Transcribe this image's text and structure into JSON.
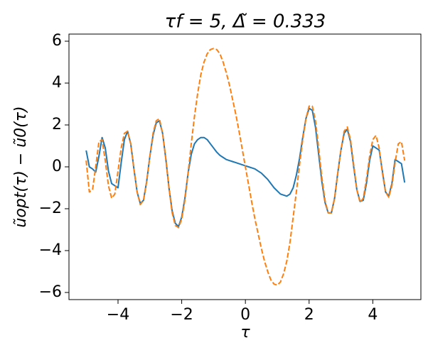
{
  "chart_data": {
    "type": "line",
    "title": "τf = 5,  Δ̃ = 0.333",
    "x_label": "τ",
    "y_label": "ũopt(τ) − ũ0(τ)",
    "x": [
      -5.0,
      -4.9,
      -4.8,
      -4.7,
      -4.6,
      -4.5,
      -4.4,
      -4.3,
      -4.2,
      -4.1,
      -4.0,
      -3.9,
      -3.8,
      -3.7,
      -3.6,
      -3.5,
      -3.4,
      -3.3,
      -3.2,
      -3.1,
      -3.0,
      -2.9,
      -2.8,
      -2.7,
      -2.6,
      -2.5,
      -2.4,
      -2.3,
      -2.2,
      -2.1,
      -2.0,
      -1.9,
      -1.8,
      -1.7,
      -1.6,
      -1.5,
      -1.4,
      -1.3,
      -1.2,
      -1.1,
      -1.0,
      -0.9,
      -0.8,
      -0.7,
      -0.6,
      -0.5,
      -0.4,
      -0.3,
      -0.2,
      -0.1,
      0.0,
      0.1,
      0.2,
      0.3,
      0.4,
      0.5,
      0.6,
      0.7,
      0.8,
      0.9,
      1.0,
      1.1,
      1.2,
      1.3,
      1.4,
      1.5,
      1.6,
      1.7,
      1.8,
      1.9,
      2.0,
      2.1,
      2.2,
      2.3,
      2.4,
      2.5,
      2.6,
      2.7,
      2.8,
      2.9,
      3.0,
      3.1,
      3.2,
      3.3,
      3.4,
      3.5,
      3.6,
      3.7,
      3.8,
      3.9,
      4.0,
      4.1,
      4.2,
      4.3,
      4.4,
      4.5,
      4.6,
      4.7,
      4.8,
      4.9,
      5.0
    ],
    "series": [
      {
        "color": "#1f77b4",
        "dash": false,
        "values": [
          0.78,
          0.0,
          -0.1,
          -0.25,
          0.5,
          1.4,
          0.9,
          -0.2,
          -0.8,
          -0.9,
          -1.0,
          0.2,
          1.3,
          1.7,
          1.1,
          -0.1,
          -1.2,
          -1.75,
          -1.6,
          -0.7,
          0.5,
          1.5,
          2.1,
          2.2,
          1.6,
          0.4,
          -1.0,
          -2.1,
          -2.7,
          -2.85,
          -2.4,
          -1.5,
          -0.3,
          0.6,
          1.1,
          1.3,
          1.4,
          1.4,
          1.3,
          1.1,
          0.9,
          0.7,
          0.55,
          0.45,
          0.35,
          0.3,
          0.25,
          0.2,
          0.15,
          0.1,
          0.05,
          0.0,
          -0.05,
          -0.1,
          -0.2,
          -0.3,
          -0.45,
          -0.6,
          -0.8,
          -1.0,
          -1.15,
          -1.3,
          -1.35,
          -1.4,
          -1.3,
          -1.0,
          -0.4,
          0.4,
          1.4,
          2.3,
          2.8,
          2.7,
          1.9,
          0.6,
          -0.7,
          -1.7,
          -2.2,
          -2.2,
          -1.5,
          -0.3,
          0.8,
          1.6,
          1.8,
          1.2,
          0.0,
          -1.1,
          -1.65,
          -1.6,
          -0.8,
          0.3,
          1.0,
          0.9,
          0.8,
          -0.2,
          -1.2,
          -1.4,
          -0.8,
          0.35,
          0.25,
          0.15,
          -0.75
        ]
      },
      {
        "color": "#ff7f0e",
        "dash": true,
        "values": [
          0.3,
          -1.2,
          -1.1,
          0.0,
          1.2,
          1.3,
          0.3,
          -0.9,
          -1.5,
          -1.3,
          -0.2,
          0.9,
          1.6,
          1.7,
          1.1,
          -0.1,
          -1.2,
          -1.8,
          -1.6,
          -0.7,
          0.5,
          1.6,
          2.2,
          2.3,
          1.6,
          0.4,
          -1.0,
          -2.2,
          -2.8,
          -2.9,
          -2.5,
          -1.6,
          -0.3,
          1.1,
          2.4,
          3.5,
          4.4,
          5.0,
          5.4,
          5.6,
          5.65,
          5.6,
          5.4,
          5.0,
          4.5,
          3.9,
          3.2,
          2.5,
          1.7,
          0.85,
          0,
          -0.85,
          -1.7,
          -2.5,
          -3.2,
          -3.9,
          -4.5,
          -5.0,
          -5.4,
          -5.6,
          -5.65,
          -5.5,
          -5.1,
          -4.5,
          -3.6,
          -2.4,
          -1.2,
          0.1,
          1.3,
          2.3,
          2.9,
          2.9,
          2.2,
          0.9,
          -0.5,
          -1.6,
          -2.2,
          -2.2,
          -1.5,
          -0.3,
          0.8,
          1.7,
          1.9,
          1.3,
          0.1,
          -1.1,
          -1.7,
          -1.5,
          -0.6,
          0.5,
          1.3,
          1.5,
          0.9,
          -0.3,
          -1.2,
          -1.45,
          -0.9,
          0.2,
          1.1,
          1.2,
          0.3
        ]
      }
    ],
    "xlim": [
      -5.54,
      5.51
    ],
    "ylim": [
      -6.34,
      6.34
    ],
    "xticks": [
      {
        "value": -4,
        "label": "−4"
      },
      {
        "value": -2,
        "label": "−2"
      },
      0,
      2,
      4
    ],
    "yticks": [
      {
        "value": -6,
        "label": "−6"
      },
      {
        "value": -4,
        "label": "−4"
      },
      {
        "value": -2,
        "label": "−2"
      },
      0,
      2,
      4,
      6
    ],
    "grid": false
  }
}
